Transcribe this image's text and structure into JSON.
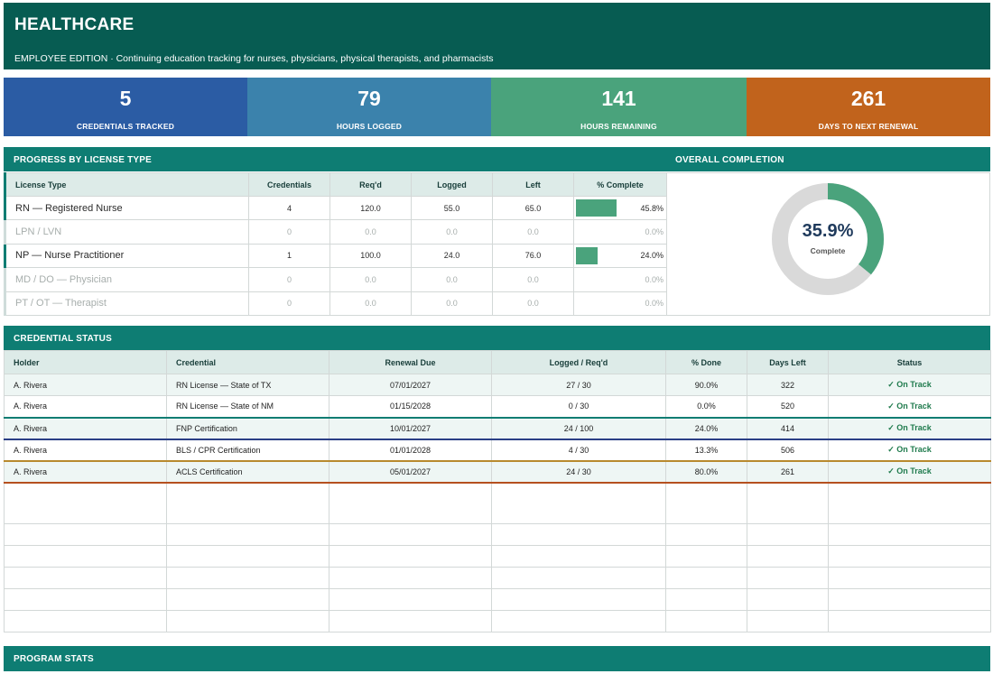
{
  "banner": {
    "title": "HEALTHCARE",
    "subtitle": "EMPLOYEE EDITION  ·  Continuing education tracking for nurses, physicians, physical therapists, and pharmacists"
  },
  "kpis": [
    {
      "value": "5",
      "label": "CREDENTIALS TRACKED",
      "color": "#2b5ca4"
    },
    {
      "value": "79",
      "label": "HOURS LOGGED",
      "color": "#3b82ac"
    },
    {
      "value": "141",
      "label": "HOURS REMAINING",
      "color": "#4aa37c"
    },
    {
      "value": "261",
      "label": "DAYS TO NEXT RENEWAL",
      "color": "#c1631c"
    }
  ],
  "progress": {
    "title": "PROGRESS BY LICENSE TYPE",
    "columns": [
      "License Type",
      "Credentials",
      "Req'd",
      "Logged",
      "Left",
      "% Complete"
    ],
    "rows": [
      {
        "type": "RN — Registered Nurse",
        "credentials": "4",
        "reqd": "120.0",
        "logged": "55.0",
        "left": "65.0",
        "pct": "45.8%",
        "fraction": 0.458,
        "active": true
      },
      {
        "type": "LPN / LVN",
        "credentials": "0",
        "reqd": "0.0",
        "logged": "0.0",
        "left": "0.0",
        "pct": "0.0%",
        "fraction": 0,
        "active": false
      },
      {
        "type": "NP — Nurse Practitioner",
        "credentials": "1",
        "reqd": "100.0",
        "logged": "24.0",
        "left": "76.0",
        "pct": "24.0%",
        "fraction": 0.24,
        "active": true
      },
      {
        "type": "MD / DO — Physician",
        "credentials": "0",
        "reqd": "0.0",
        "logged": "0.0",
        "left": "0.0",
        "pct": "0.0%",
        "fraction": 0,
        "active": false
      },
      {
        "type": "PT / OT — Therapist",
        "credentials": "0",
        "reqd": "0.0",
        "logged": "0.0",
        "left": "0.0",
        "pct": "0.0%",
        "fraction": 0,
        "active": false
      }
    ]
  },
  "overall": {
    "title": "OVERALL COMPLETION",
    "value": "35.9%",
    "fraction": 0.359,
    "label": "Complete",
    "fill_color": "#4aa37c",
    "track_color": "#d9d9d9"
  },
  "credential_status": {
    "title": "CREDENTIAL STATUS",
    "columns": [
      "Holder",
      "Credential",
      "Renewal Due",
      "Logged / Req'd",
      "% Done",
      "Days Left",
      "Status"
    ],
    "rows": [
      {
        "holder": "A. Rivera",
        "credential": "RN License — State of TX",
        "renewal": "07/01/2027",
        "logged": "27 / 30",
        "done": "90.0%",
        "days": "322",
        "status": "✓ On Track"
      },
      {
        "holder": "A. Rivera",
        "credential": "RN License — State of NM",
        "renewal": "01/15/2028",
        "logged": "0 / 30",
        "done": "0.0%",
        "days": "520",
        "status": "✓ On Track"
      },
      {
        "holder": "A. Rivera",
        "credential": "FNP Certification",
        "renewal": "10/01/2027",
        "logged": "24 / 100",
        "done": "24.0%",
        "days": "414",
        "status": "✓ On Track"
      },
      {
        "holder": "A. Rivera",
        "credential": "BLS / CPR Certification",
        "renewal": "01/01/2028",
        "logged": "4 / 30",
        "done": "13.3%",
        "days": "506",
        "status": "✓ On Track"
      },
      {
        "holder": "A. Rivera",
        "credential": "ACLS Certification",
        "renewal": "05/01/2027",
        "logged": "24 / 30",
        "done": "80.0%",
        "days": "261",
        "status": "✓ On Track"
      }
    ]
  },
  "program_stats": {
    "title": "PROGRAM STATS"
  }
}
